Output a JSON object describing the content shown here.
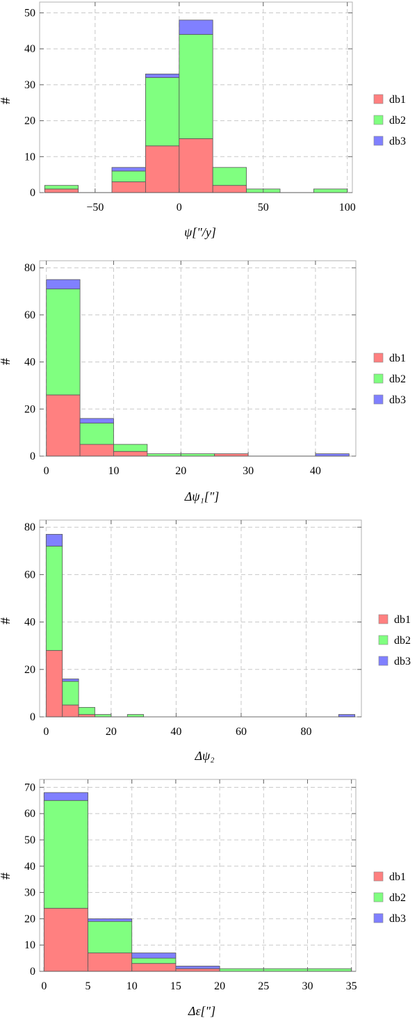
{
  "colors": {
    "db1": "#ff8080",
    "db2": "#80ff80",
    "db3": "#8080ff"
  },
  "chart_data": [
    {
      "type": "bar",
      "stacked": true,
      "xlabel": "ψ̇[\"/y]",
      "ylabel": "#",
      "xlim": [
        -83,
        103
      ],
      "ylim": [
        0,
        53
      ],
      "xticks": [
        -50,
        0,
        50,
        100
      ],
      "xtick_labels": [
        "−50",
        "0",
        "50",
        "100"
      ],
      "yticks": [
        0,
        10,
        20,
        30,
        40,
        50
      ],
      "grid": true,
      "legend": "right",
      "bins": [
        [
          -80,
          -60
        ],
        [
          -60,
          -40
        ],
        [
          -40,
          -20
        ],
        [
          -20,
          0
        ],
        [
          0,
          20
        ],
        [
          20,
          40
        ],
        [
          40,
          60
        ],
        [
          60,
          80
        ],
        [
          80,
          100
        ]
      ],
      "series": [
        {
          "name": "db1",
          "values": [
            1,
            0,
            3,
            13,
            15,
            2,
            0,
            0,
            0
          ]
        },
        {
          "name": "db2",
          "values": [
            1,
            0,
            3,
            19,
            29,
            5,
            1,
            0,
            1
          ]
        },
        {
          "name": "db3",
          "values": [
            0,
            0,
            1,
            1,
            4,
            0,
            0,
            0,
            0
          ]
        }
      ]
    },
    {
      "type": "bar",
      "stacked": true,
      "xlabel": "Δψ₁[\"]",
      "ylabel": "#",
      "xlim": [
        -1,
        46
      ],
      "ylim": [
        0,
        83
      ],
      "xticks": [
        0,
        10,
        20,
        30,
        40
      ],
      "xtick_labels": [
        "0",
        "10",
        "20",
        "30",
        "40"
      ],
      "yticks": [
        0,
        20,
        40,
        60,
        80
      ],
      "grid": true,
      "legend": "right",
      "bins": [
        [
          0,
          5
        ],
        [
          5,
          10
        ],
        [
          10,
          15
        ],
        [
          15,
          20
        ],
        [
          20,
          25
        ],
        [
          25,
          30
        ],
        [
          30,
          35
        ],
        [
          35,
          40
        ],
        [
          40,
          45
        ]
      ],
      "series": [
        {
          "name": "db1",
          "values": [
            26,
            5,
            2,
            0,
            0,
            1,
            0,
            0,
            0
          ]
        },
        {
          "name": "db2",
          "values": [
            45,
            9,
            3,
            1,
            1,
            0,
            0,
            0,
            0
          ]
        },
        {
          "name": "db3",
          "values": [
            4,
            2,
            0,
            0,
            0,
            0,
            0,
            0,
            1
          ]
        }
      ]
    },
    {
      "type": "bar",
      "stacked": true,
      "xlabel": "Δψ₂",
      "ylabel": "#",
      "xlim": [
        -2,
        97
      ],
      "ylim": [
        0,
        83
      ],
      "xticks": [
        0,
        20,
        40,
        60,
        80
      ],
      "xtick_labels": [
        "0",
        "20",
        "40",
        "60",
        "80"
      ],
      "yticks": [
        0,
        20,
        40,
        60,
        80
      ],
      "grid": true,
      "legend": "right",
      "bins": [
        [
          0,
          5
        ],
        [
          5,
          10
        ],
        [
          10,
          15
        ],
        [
          15,
          20
        ],
        [
          20,
          25
        ],
        [
          25,
          30
        ],
        [
          90,
          95
        ]
      ],
      "series": [
        {
          "name": "db1",
          "values": [
            28,
            5,
            1,
            0,
            0,
            0,
            0
          ]
        },
        {
          "name": "db2",
          "values": [
            44,
            10,
            3,
            1,
            0,
            1,
            0
          ]
        },
        {
          "name": "db3",
          "values": [
            5,
            1,
            0,
            0,
            0,
            0,
            1
          ]
        }
      ]
    },
    {
      "type": "bar",
      "stacked": true,
      "xlabel": "Δε[\"]",
      "ylabel": "#",
      "xlim": [
        -0.5,
        35.5
      ],
      "ylim": [
        0,
        73
      ],
      "xticks": [
        0,
        5,
        10,
        15,
        20,
        25,
        30,
        35
      ],
      "xtick_labels": [
        "0",
        "5",
        "10",
        "15",
        "20",
        "25",
        "30",
        "35"
      ],
      "yticks": [
        0,
        10,
        20,
        30,
        40,
        50,
        60,
        70
      ],
      "grid": true,
      "legend": "right",
      "bins": [
        [
          0,
          5
        ],
        [
          5,
          10
        ],
        [
          10,
          15
        ],
        [
          15,
          20
        ],
        [
          20,
          35
        ]
      ],
      "series": [
        {
          "name": "db1",
          "values": [
            24,
            7,
            3,
            1,
            0
          ]
        },
        {
          "name": "db2",
          "values": [
            41,
            12,
            2,
            0,
            1
          ]
        },
        {
          "name": "db3",
          "values": [
            3,
            1,
            2,
            1,
            0
          ]
        }
      ]
    }
  ]
}
